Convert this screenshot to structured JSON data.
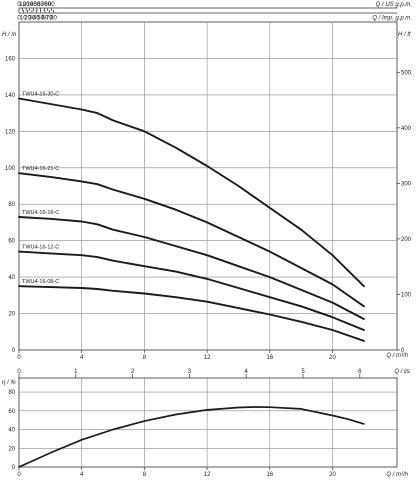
{
  "chart_data": [
    {
      "type": "line",
      "panel": "head",
      "curve_color": "#1a1a1a",
      "bottom_axis": {
        "label": "Q / m³/h",
        "ticks": [
          "0",
          "4",
          "8",
          "12",
          "16",
          "20"
        ],
        "range": [
          0,
          22.5
        ]
      },
      "top_axes": [
        {
          "label": "Q / US g.p.m.",
          "ticks": [
            "0",
            "10",
            "20",
            "30",
            "40",
            "50",
            "60",
            "70",
            "80",
            "90"
          ]
        },
        {
          "label": "Q / Imp. g.p.m.",
          "ticks": [
            "0",
            "10",
            "20",
            "30",
            "40",
            "50",
            "60",
            "70",
            "80"
          ]
        }
      ],
      "left_axis": {
        "label": "H / m",
        "ticks": [
          "0",
          "20",
          "40",
          "60",
          "80",
          "100",
          "120",
          "140",
          "160"
        ],
        "range": [
          0,
          180
        ]
      },
      "right_axis": {
        "label": "H / ft",
        "ticks": [
          "0",
          "100",
          "200",
          "300",
          "400",
          "500"
        ]
      },
      "grid": true,
      "series": [
        {
          "name": "TWU4-16-30-C",
          "x": [
            0,
            2,
            4,
            5,
            6,
            8,
            10,
            12,
            14,
            16,
            18,
            20,
            22
          ],
          "y": [
            138,
            135,
            132,
            130,
            126,
            120,
            111,
            101,
            90,
            78,
            66,
            52,
            35
          ]
        },
        {
          "name": "TWU4-16-21-C",
          "x": [
            0,
            2,
            4,
            5,
            6,
            8,
            10,
            12,
            14,
            16,
            18,
            20,
            22
          ],
          "y": [
            97,
            95,
            92.5,
            91,
            88,
            83,
            77,
            70,
            62,
            54,
            45,
            36,
            24
          ]
        },
        {
          "name": "TWU4-16-16-C",
          "x": [
            0,
            2,
            4,
            5,
            6,
            8,
            10,
            12,
            14,
            16,
            18,
            20,
            22
          ],
          "y": [
            73,
            72,
            70.5,
            69,
            66,
            62,
            57,
            52,
            46,
            40,
            33,
            26,
            17
          ]
        },
        {
          "name": "TWU4-16-12-C",
          "x": [
            0,
            2,
            4,
            5,
            6,
            8,
            10,
            12,
            14,
            16,
            18,
            20,
            22
          ],
          "y": [
            54,
            53,
            52,
            51,
            49,
            46,
            43,
            39,
            34,
            29,
            24,
            18,
            11
          ]
        },
        {
          "name": "TWU4-16-08-C",
          "x": [
            0,
            2,
            4,
            5,
            6,
            8,
            10,
            12,
            14,
            16,
            18,
            20,
            22
          ],
          "y": [
            35,
            34.5,
            34,
            33.5,
            32.5,
            31,
            29,
            26.5,
            23,
            19.5,
            15.5,
            11,
            5
          ]
        }
      ]
    },
    {
      "type": "line",
      "panel": "efficiency",
      "curve_color": "#1a1a1a",
      "bottom_axis": {
        "label": "Q / m³/h",
        "ticks": [
          "0",
          "4",
          "8",
          "12",
          "16",
          "20"
        ],
        "range": [
          0,
          22.5
        ]
      },
      "top_axis": {
        "label": "Q / l/s",
        "ticks": [
          "0",
          "1",
          "2",
          "3",
          "4",
          "5",
          "6"
        ]
      },
      "left_axis": {
        "label": "η / %",
        "ticks": [
          "0",
          "20",
          "40",
          "60",
          "80"
        ],
        "range": [
          0,
          95
        ]
      },
      "grid": true,
      "series": [
        {
          "name": "",
          "x": [
            0,
            2,
            4,
            6,
            8,
            10,
            12,
            14,
            15,
            16,
            18,
            20,
            21,
            22
          ],
          "y": [
            0,
            15,
            29,
            40,
            49,
            56,
            61,
            63.5,
            64,
            63.8,
            62,
            55,
            51,
            46
          ]
        }
      ]
    }
  ]
}
